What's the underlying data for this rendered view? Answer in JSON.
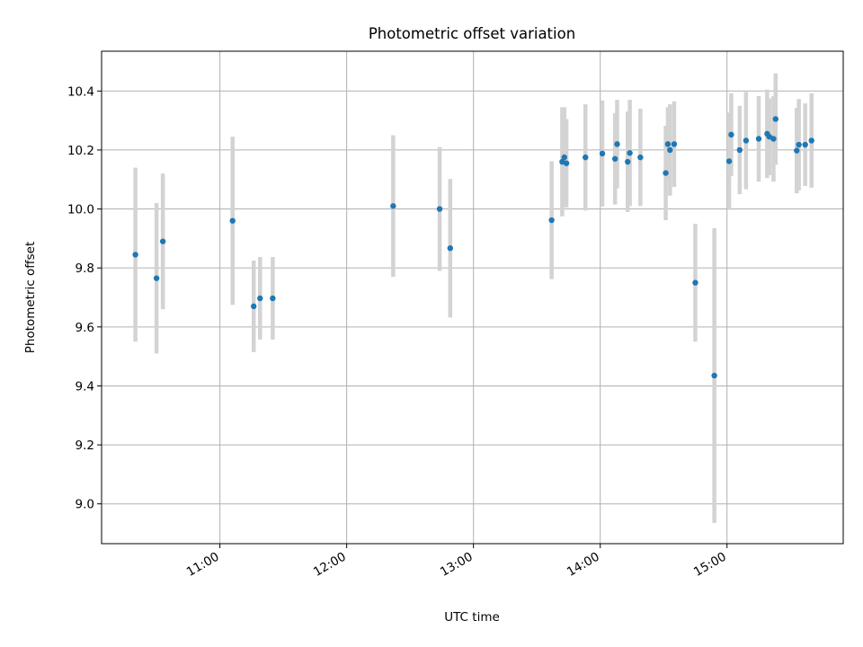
{
  "chart_data": {
    "type": "scatter",
    "title": "Photometric offset variation",
    "xlabel": "UTC time",
    "ylabel": "Photometric offset",
    "x_tick_labels": [
      "11:00",
      "12:00",
      "13:00",
      "14:00",
      "15:00"
    ],
    "x_tick_values": [
      "11:00",
      "12:00",
      "13:00",
      "14:00",
      "15:00"
    ],
    "y_tick_labels": [
      "9.0",
      "9.2",
      "9.4",
      "9.6",
      "9.8",
      "10.0",
      "10.2",
      "10.4"
    ],
    "y_tick_values": [
      9.0,
      9.2,
      9.4,
      9.6,
      9.8,
      10.0,
      10.2,
      10.4
    ],
    "xlim": [
      "10:04",
      "15:55"
    ],
    "ylim": [
      8.865,
      10.535
    ],
    "grid": true,
    "colors": {
      "point": "#1f77b4",
      "errorbar": "#d3d3d3",
      "grid": "#b0b0b0"
    },
    "points": [
      {
        "time": "10:20",
        "value": 9.845,
        "err": 0.295
      },
      {
        "time": "10:30",
        "value": 9.765,
        "err": 0.255
      },
      {
        "time": "10:33",
        "value": 9.89,
        "err": 0.23
      },
      {
        "time": "11:06",
        "value": 9.96,
        "err": 0.285
      },
      {
        "time": "11:16",
        "value": 9.67,
        "err": 0.155
      },
      {
        "time": "11:19",
        "value": 9.697,
        "err": 0.14
      },
      {
        "time": "11:25",
        "value": 9.697,
        "err": 0.14
      },
      {
        "time": "12:22",
        "value": 10.01,
        "err": 0.24
      },
      {
        "time": "12:44",
        "value": 10.0,
        "err": 0.21
      },
      {
        "time": "12:49",
        "value": 9.867,
        "err": 0.235
      },
      {
        "time": "13:37",
        "value": 9.962,
        "err": 0.2
      },
      {
        "time": "13:42",
        "value": 10.16,
        "err": 0.185
      },
      {
        "time": "13:43",
        "value": 10.175,
        "err": 0.17
      },
      {
        "time": "13:44",
        "value": 10.155,
        "err": 0.15
      },
      {
        "time": "13:53",
        "value": 10.175,
        "err": 0.18
      },
      {
        "time": "14:01",
        "value": 10.188,
        "err": 0.18
      },
      {
        "time": "14:07",
        "value": 10.17,
        "err": 0.155
      },
      {
        "time": "14:08",
        "value": 10.22,
        "err": 0.15
      },
      {
        "time": "14:13",
        "value": 10.16,
        "err": 0.17
      },
      {
        "time": "14:14",
        "value": 10.19,
        "err": 0.18
      },
      {
        "time": "14:19",
        "value": 10.175,
        "err": 0.165
      },
      {
        "time": "14:31",
        "value": 10.122,
        "err": 0.16
      },
      {
        "time": "14:32",
        "value": 10.22,
        "err": 0.125
      },
      {
        "time": "14:33",
        "value": 10.2,
        "err": 0.155
      },
      {
        "time": "14:35",
        "value": 10.22,
        "err": 0.145
      },
      {
        "time": "14:45",
        "value": 9.75,
        "err": 0.2
      },
      {
        "time": "14:54",
        "value": 9.435,
        "err": 0.5
      },
      {
        "time": "15:01",
        "value": 10.162,
        "err": 0.165
      },
      {
        "time": "15:02",
        "value": 10.252,
        "err": 0.14
      },
      {
        "time": "15:06",
        "value": 10.2,
        "err": 0.15
      },
      {
        "time": "15:09",
        "value": 10.232,
        "err": 0.165
      },
      {
        "time": "15:15",
        "value": 10.238,
        "err": 0.145
      },
      {
        "time": "15:19",
        "value": 10.255,
        "err": 0.15
      },
      {
        "time": "15:20",
        "value": 10.245,
        "err": 0.13
      },
      {
        "time": "15:22",
        "value": 10.238,
        "err": 0.145
      },
      {
        "time": "15:23",
        "value": 10.305,
        "err": 0.155
      },
      {
        "time": "15:33",
        "value": 10.198,
        "err": 0.145
      },
      {
        "time": "15:34",
        "value": 10.218,
        "err": 0.155
      },
      {
        "time": "15:37",
        "value": 10.218,
        "err": 0.14
      },
      {
        "time": "15:40",
        "value": 10.232,
        "err": 0.16
      }
    ]
  }
}
